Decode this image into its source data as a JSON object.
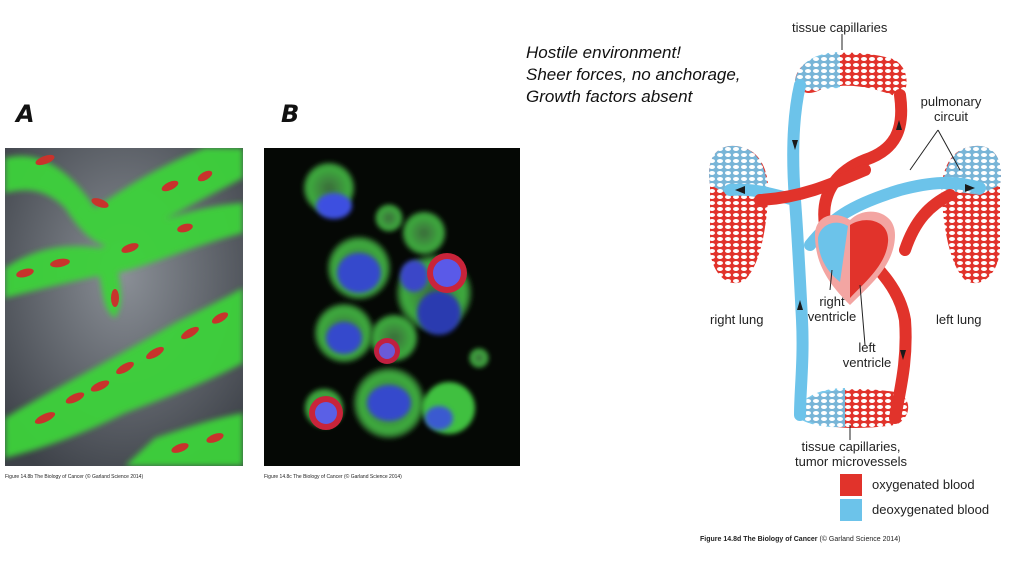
{
  "panel_a": {
    "letter": "A",
    "caption": "Figure 14.8b The Biology of Cancer (© Garland Science 2014)"
  },
  "panel_b": {
    "letter": "B",
    "caption": "Figure 14.8c The Biology of Cancer (© Garland Science 2014)"
  },
  "note": {
    "line1": "Hostile environment!",
    "line2": "Sheer forces, no anchorage,",
    "line3": "Growth factors absent"
  },
  "diagram": {
    "labels": {
      "tissue_capillaries_top": "tissue capillaries",
      "pulmonary_circuit_1": "pulmonary",
      "pulmonary_circuit_2": "circuit",
      "right_lung": "right lung",
      "left_lung": "left lung",
      "right_ventricle_1": "right",
      "right_ventricle_2": "ventricle",
      "left_ventricle_1": "left",
      "left_ventricle_2": "ventricle",
      "tissue_capillaries_bottom_1": "tissue capillaries,",
      "tissue_capillaries_bottom_2": "tumor microvessels"
    },
    "legend": [
      {
        "label": "oxygenated blood",
        "color": "#e1332b"
      },
      {
        "label": "deoxygenated blood",
        "color": "#6cc3ea"
      }
    ],
    "caption_bold": "Figure 14.8d",
    "caption_bold2": "The Biology of Cancer",
    "caption_rest": "(© Garland Science 2014)"
  },
  "colors": {
    "oxygenated": "#e1332b",
    "deoxygenated": "#6cc3ea",
    "green_vessel": "#3ed23a"
  }
}
